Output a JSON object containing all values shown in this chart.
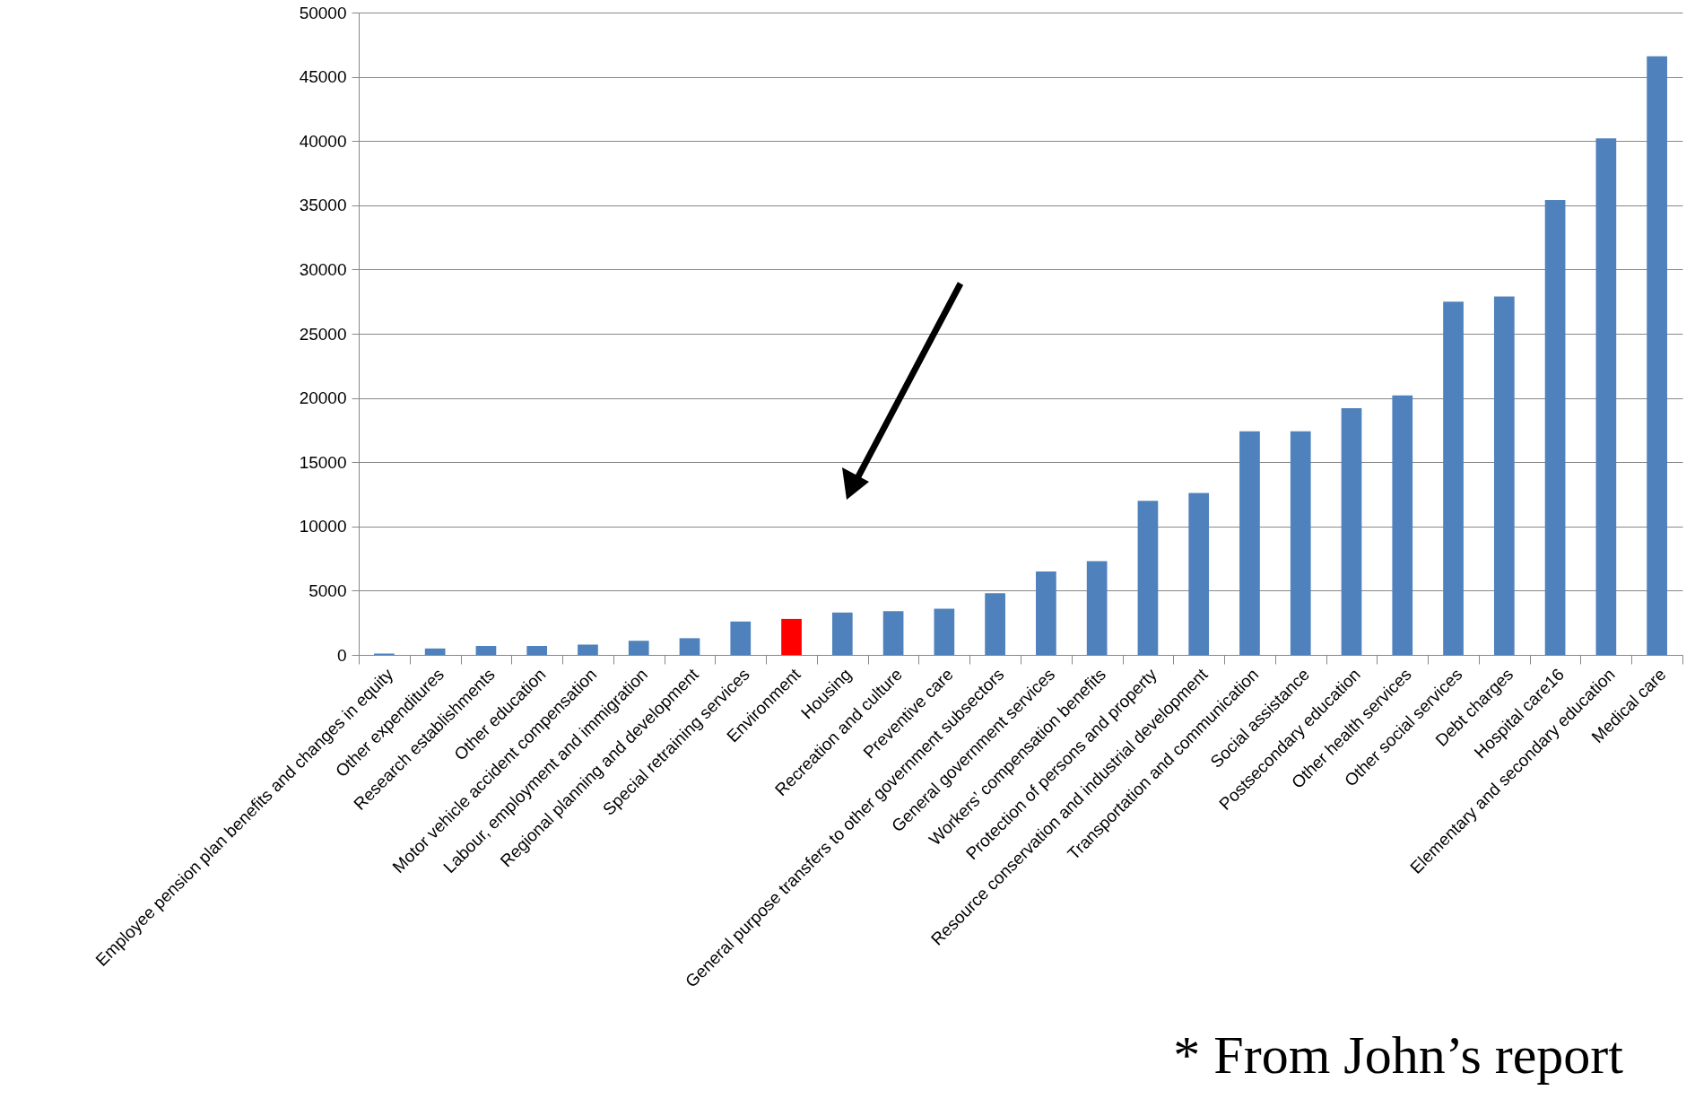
{
  "chart_data": {
    "type": "bar",
    "categories": [
      "Employee pension plan benefits and changes in equity",
      "Other expenditures",
      "Research establishments",
      "Other education",
      "Motor vehicle accident compensation",
      "Labour, employment and immigration",
      "Regional planning and development",
      "Special retraining services",
      "Environment",
      "Housing",
      "Recreation and culture",
      "Preventive care",
      "General purpose transfers to other government subsectors",
      "General government services",
      "Workers’ compensation benefits",
      "Protection of persons and property",
      "Resource conservation and industrial development",
      "Transportation and communication",
      "Social assistance",
      "Postsecondary education",
      "Other health services",
      "Other social services",
      "Debt charges",
      "Hospital care16",
      "Elementary and secondary education",
      "Medical care"
    ],
    "values": [
      100,
      500,
      700,
      700,
      800,
      1100,
      1300,
      2600,
      2800,
      3300,
      3400,
      3600,
      4800,
      6500,
      7300,
      12000,
      12600,
      17400,
      17400,
      19200,
      20200,
      27500,
      27900,
      35400,
      40200,
      46600
    ],
    "colors": [
      "#4f81bd",
      "#4f81bd",
      "#4f81bd",
      "#4f81bd",
      "#4f81bd",
      "#4f81bd",
      "#4f81bd",
      "#4f81bd",
      "#ff0000",
      "#4f81bd",
      "#4f81bd",
      "#4f81bd",
      "#4f81bd",
      "#4f81bd",
      "#4f81bd",
      "#4f81bd",
      "#4f81bd",
      "#4f81bd",
      "#4f81bd",
      "#4f81bd",
      "#4f81bd",
      "#4f81bd",
      "#4f81bd",
      "#4f81bd",
      "#4f81bd",
      "#4f81bd"
    ],
    "ylim": [
      0,
      50000
    ],
    "yticks": [
      0,
      5000,
      10000,
      15000,
      20000,
      25000,
      30000,
      35000,
      40000,
      45000,
      50000
    ],
    "grid": "y",
    "annotations": [
      "* From John’s report"
    ]
  }
}
